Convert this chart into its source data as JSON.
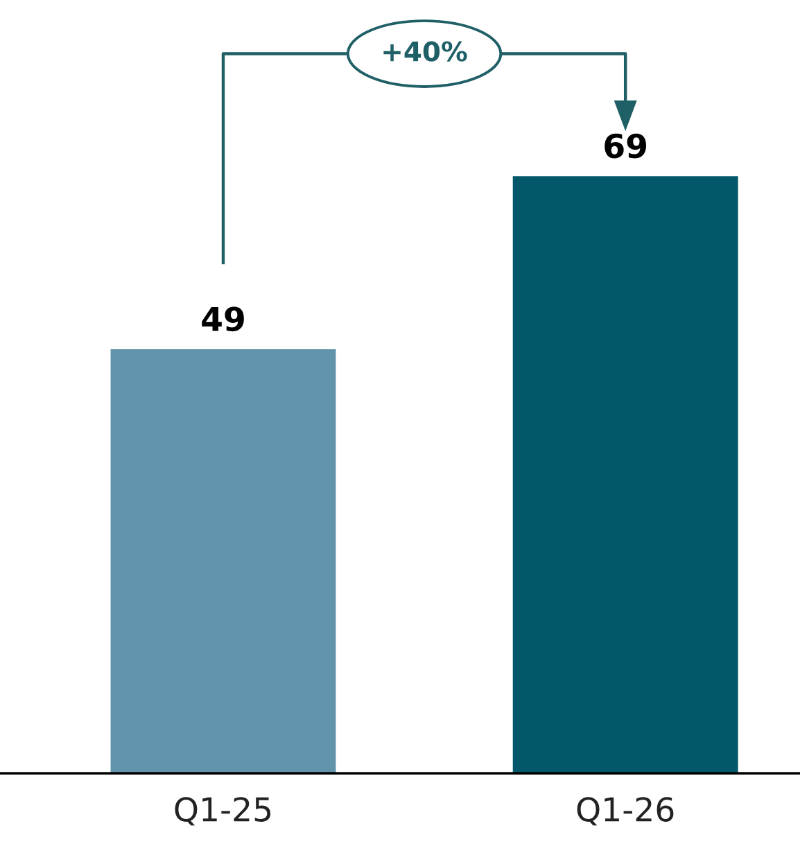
{
  "chart_data": {
    "type": "bar",
    "categories": [
      "Q1-25",
      "Q1-26"
    ],
    "values": [
      49,
      69
    ],
    "colors": [
      "#6193ab",
      "#02586a"
    ],
    "data_labels": true,
    "annotations": [
      "+40%"
    ]
  }
}
